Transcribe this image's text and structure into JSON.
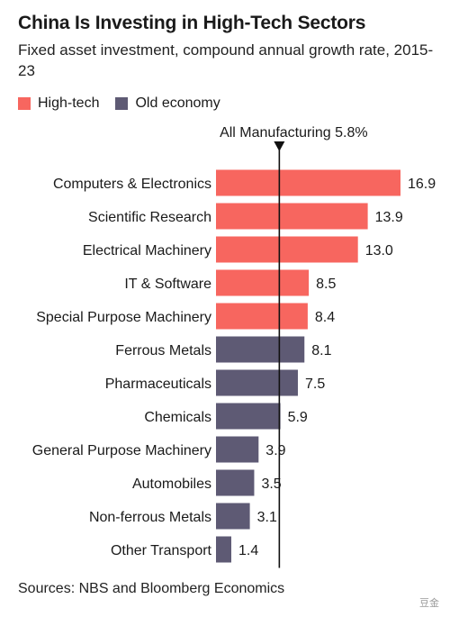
{
  "chart_data": {
    "type": "bar",
    "orientation": "horizontal",
    "title": "China Is Investing in High-Tech Sectors",
    "subtitle": "Fixed asset investment, compound annual growth rate, 2015-23",
    "categories": [
      "Computers & Electronics",
      "Scientific Research",
      "Electrical Machinery",
      "IT & Software",
      "Special Purpose Machinery",
      "Ferrous Metals",
      "Pharmaceuticals",
      "Chemicals",
      "General Purpose Machinery",
      "Automobiles",
      "Non-ferrous Metals",
      "Other Transport"
    ],
    "values": [
      16.9,
      13.9,
      13.0,
      8.5,
      8.4,
      8.1,
      7.5,
      5.9,
      3.9,
      3.5,
      3.1,
      1.4
    ],
    "value_labels": [
      "16.9",
      "13.9",
      "13.0",
      "8.5",
      "8.4",
      "8.1",
      "7.5",
      "5.9",
      "3.9",
      "3.5",
      "3.1",
      "1.4"
    ],
    "groups": [
      "High-tech",
      "High-tech",
      "High-tech",
      "High-tech",
      "High-tech",
      "Old economy",
      "Old economy",
      "Old economy",
      "Old economy",
      "Old economy",
      "Old economy",
      "Old economy"
    ],
    "series": [
      {
        "name": "High-tech",
        "color": "#f7665f"
      },
      {
        "name": "Old economy",
        "color": "#5e5a74"
      }
    ],
    "reference_line": {
      "label": "All Manufacturing 5.8%",
      "value": 5.8
    },
    "xlim": [
      0,
      16.9
    ],
    "grid": false,
    "legend_position": "top-left"
  },
  "source": "Sources: NBS and Bloomberg Economics",
  "watermark": "豆金"
}
